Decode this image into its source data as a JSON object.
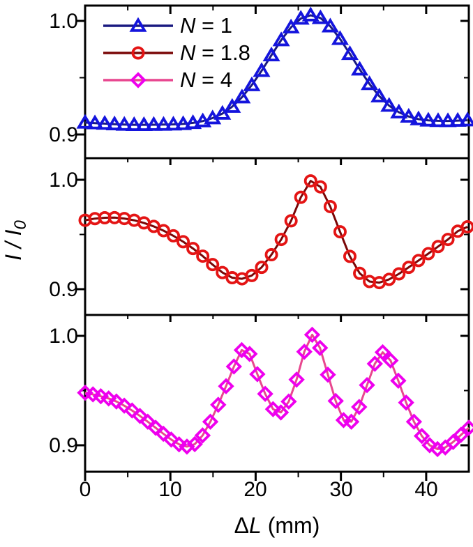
{
  "figure": {
    "xlabel": {
      "delta": "Δ",
      "variable": "L",
      "unit": " (mm)"
    },
    "ylabel": {
      "numerator": "I / I",
      "subscript": "0"
    },
    "x_tick_labels": [
      "0",
      "10",
      "20",
      "30",
      "40"
    ],
    "y_tick_labels": [
      "1.0",
      "0.9"
    ]
  },
  "legend": {
    "items": [
      {
        "symbol": "N",
        "rest": " = 1"
      },
      {
        "symbol": "N",
        "rest": " = 1.8"
      },
      {
        "symbol": "N",
        "rest": " = 4"
      }
    ]
  },
  "chart_data": {
    "type": "line",
    "title": "",
    "xlabel": "ΔL (mm)",
    "ylabel": "I / I_0",
    "xlim": [
      0,
      45
    ],
    "x_major_ticks": [
      0,
      10,
      20,
      30,
      40
    ],
    "x_minor_ticks": [
      5,
      15,
      25,
      35
    ],
    "grid": false,
    "legend_position": "top-left inside first panel",
    "panels": [
      {
        "legend": "N = 1",
        "marker": "triangle",
        "marker_color": "#1414dd",
        "line_color": "#1a1a80",
        "ylim": [
          0.898,
          1.013
        ],
        "y_major_ticks": [
          0.9,
          1.0
        ],
        "y_minor_ticks": [
          0.95
        ],
        "x": [
          0,
          1.15,
          2.3,
          3.45,
          4.6,
          5.75,
          6.9,
          8.05,
          9.2,
          10.35,
          11.5,
          12.65,
          13.8,
          14.95,
          16.1,
          17.25,
          18.4,
          19.55,
          20.7,
          21.85,
          23.0,
          24.15,
          25.3,
          26.45,
          27.6,
          28.75,
          29.9,
          31.05,
          32.2,
          33.35,
          34.5,
          35.65,
          36.8,
          37.95,
          39.1,
          40.25,
          41.4,
          42.55,
          43.7,
          44.85
        ],
        "y": [
          0.9105,
          0.91,
          0.9096,
          0.9091,
          0.9087,
          0.9085,
          0.9085,
          0.9086,
          0.9087,
          0.9089,
          0.9093,
          0.9102,
          0.9118,
          0.9144,
          0.9184,
          0.9245,
          0.9328,
          0.9435,
          0.9561,
          0.9698,
          0.9831,
          0.9944,
          1.0021,
          1.005,
          1.0026,
          0.9953,
          0.9842,
          0.971,
          0.9573,
          0.9445,
          0.9337,
          0.9254,
          0.9196,
          0.9158,
          0.9135,
          0.9124,
          0.912,
          0.9119,
          0.9122,
          0.9125
        ]
      },
      {
        "legend": "N = 1.8",
        "marker": "circle",
        "marker_color": "#e41414",
        "line_color": "#7a0606",
        "ylim": [
          0.876,
          1.02
        ],
        "y_major_ticks": [
          0.9,
          1.0
        ],
        "y_minor_ticks": [
          0.95
        ],
        "x": [
          0,
          1.15,
          2.3,
          3.45,
          4.6,
          5.75,
          6.9,
          8.05,
          9.2,
          10.35,
          11.5,
          12.65,
          13.8,
          14.95,
          16.1,
          17.25,
          18.4,
          19.55,
          20.7,
          21.85,
          23.0,
          24.15,
          25.3,
          26.45,
          27.6,
          28.75,
          29.9,
          31.05,
          32.2,
          33.35,
          34.5,
          35.65,
          36.8,
          37.95,
          39.1,
          40.25,
          41.4,
          42.55,
          43.7,
          44.85
        ],
        "y": [
          0.963,
          0.9645,
          0.9653,
          0.9654,
          0.9646,
          0.963,
          0.9606,
          0.9574,
          0.9535,
          0.9488,
          0.9434,
          0.9372,
          0.9302,
          0.9225,
          0.9152,
          0.9105,
          0.9095,
          0.9125,
          0.92,
          0.9315,
          0.9455,
          0.9625,
          0.984,
          0.999,
          0.9935,
          0.9755,
          0.9525,
          0.93,
          0.9145,
          0.907,
          0.906,
          0.909,
          0.914,
          0.92,
          0.9262,
          0.9325,
          0.939,
          0.9455,
          0.953,
          0.957
        ]
      },
      {
        "legend": "N = 4",
        "marker": "diamond",
        "marker_color": "#ee00ee",
        "line_color": "#e8478f",
        "ylim": [
          0.876,
          1.019
        ],
        "y_major_ticks": [
          0.9,
          1.0
        ],
        "y_minor_ticks": [
          0.95
        ],
        "x": [
          0,
          0.92,
          1.84,
          2.76,
          3.67,
          4.59,
          5.51,
          6.43,
          7.35,
          8.27,
          9.18,
          10.1,
          11.02,
          11.94,
          12.86,
          13.78,
          14.69,
          15.61,
          16.53,
          17.45,
          18.37,
          19.29,
          20.2,
          21.12,
          22.04,
          22.96,
          23.88,
          24.8,
          25.71,
          26.63,
          27.55,
          28.47,
          29.39,
          30.31,
          31.22,
          32.14,
          33.06,
          33.98,
          34.9,
          35.82,
          36.73,
          37.65,
          38.57,
          39.49,
          40.41,
          41.33,
          42.24,
          43.16,
          44.08,
          45.0
        ],
        "y": [
          0.948,
          0.9465,
          0.9448,
          0.9428,
          0.94,
          0.9362,
          0.9318,
          0.9268,
          0.9215,
          0.916,
          0.9105,
          0.9052,
          0.9008,
          0.8988,
          0.901,
          0.909,
          0.9215,
          0.937,
          0.954,
          0.972,
          0.987,
          0.9835,
          0.965,
          0.947,
          0.933,
          0.93,
          0.94,
          0.96,
          0.9855,
          1.001,
          0.989,
          0.9645,
          0.9405,
          0.923,
          0.9215,
          0.935,
          0.955,
          0.9745,
          0.985,
          0.9775,
          0.959,
          0.939,
          0.9215,
          0.9085,
          0.9,
          0.8965,
          0.898,
          0.903,
          0.9095,
          0.916
        ]
      }
    ]
  }
}
